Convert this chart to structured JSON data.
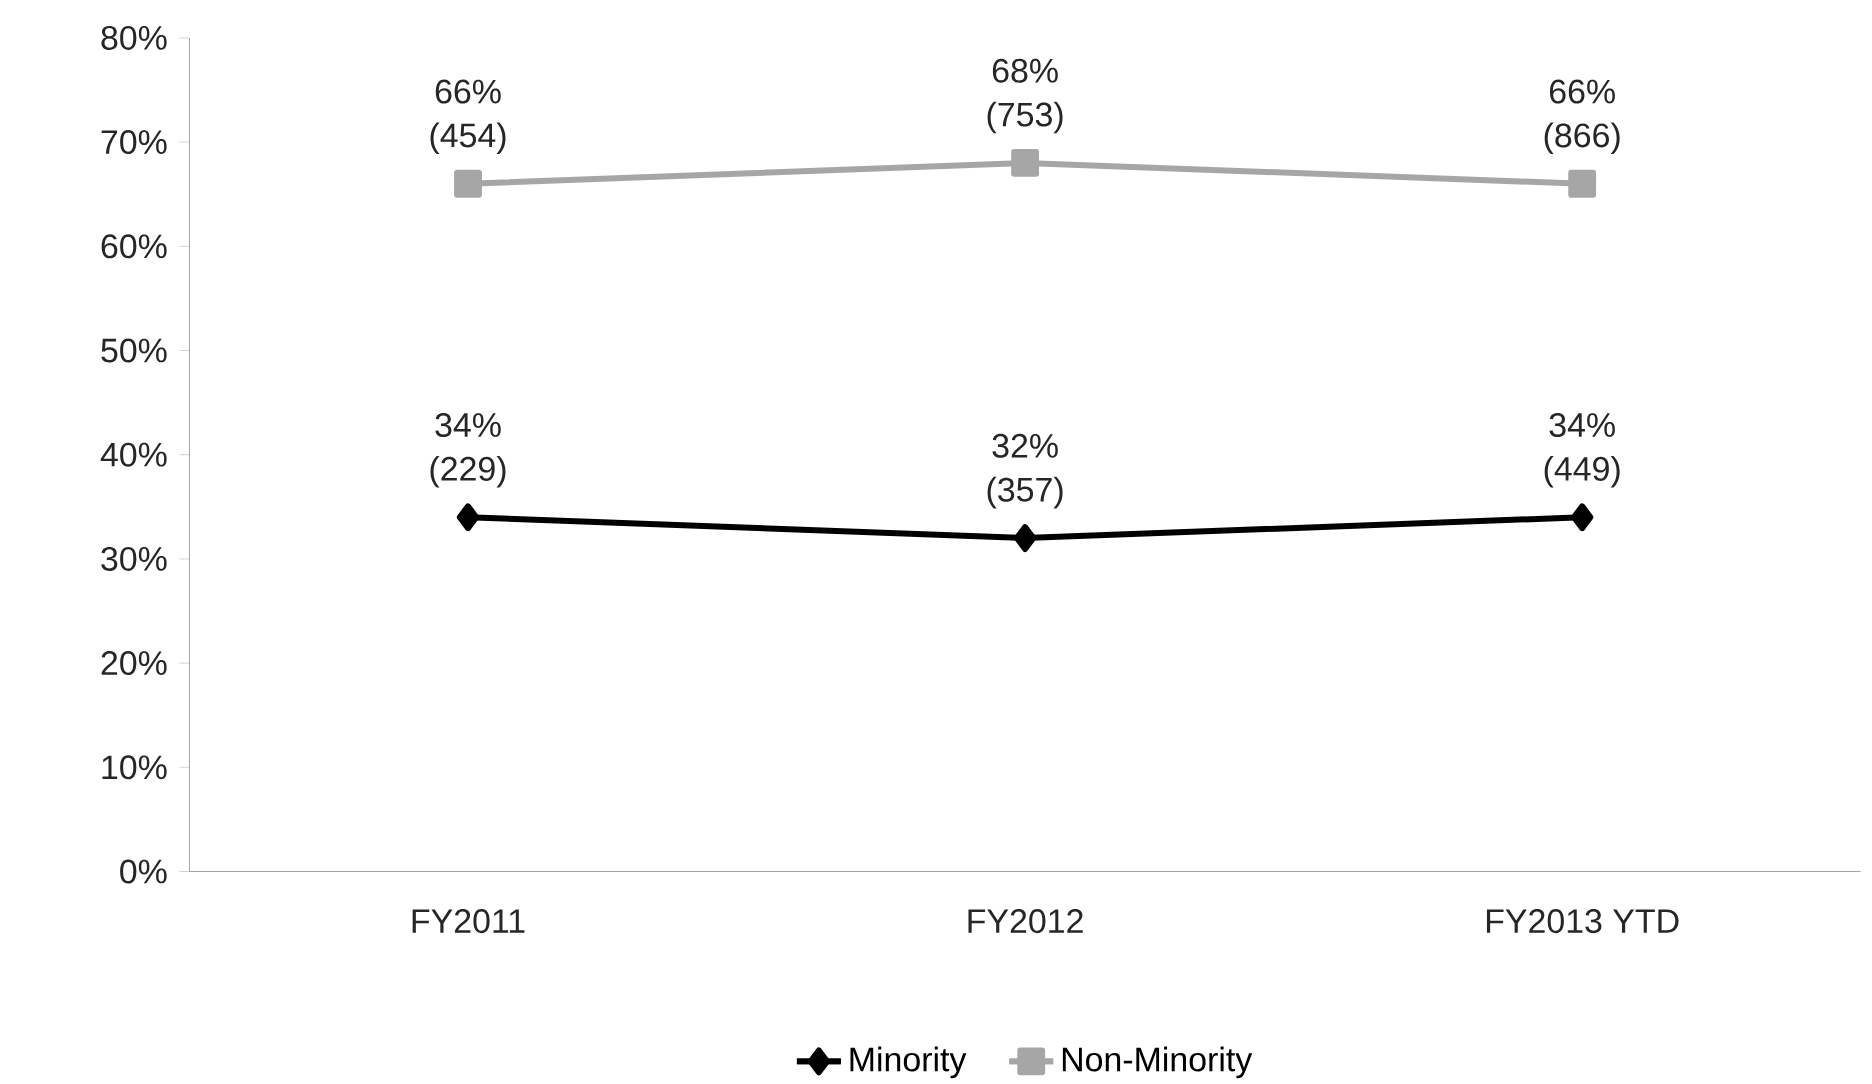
{
  "chart_data": {
    "type": "line",
    "categories": [
      "FY2011",
      "FY2012",
      "FY2013 YTD"
    ],
    "series": [
      {
        "name": "Minority",
        "color": "#000000",
        "marker": "diamond",
        "values": [
          34,
          32,
          34
        ],
        "value_labels": [
          "34% (229)",
          "32% (357)",
          "34% (449)"
        ]
      },
      {
        "name": "Non-Minority",
        "color": "#a6a6a6",
        "marker": "square",
        "values": [
          66,
          68,
          66
        ],
        "value_labels": [
          "66% (454)",
          "68% (753)",
          "66% (866)"
        ]
      }
    ],
    "ylim": [
      0,
      80
    ],
    "yticks": [
      {
        "value": 0,
        "label": "0%"
      },
      {
        "value": 10,
        "label": "10%"
      },
      {
        "value": 20,
        "label": "20%"
      },
      {
        "value": 30,
        "label": "30%"
      },
      {
        "value": 40,
        "label": "40%"
      },
      {
        "value": 50,
        "label": "50%"
      },
      {
        "value": 60,
        "label": "60%"
      },
      {
        "value": 70,
        "label": "70%"
      },
      {
        "value": 80,
        "label": "80%"
      }
    ],
    "grid": false,
    "legend": "bottom",
    "line_style": "solid"
  }
}
